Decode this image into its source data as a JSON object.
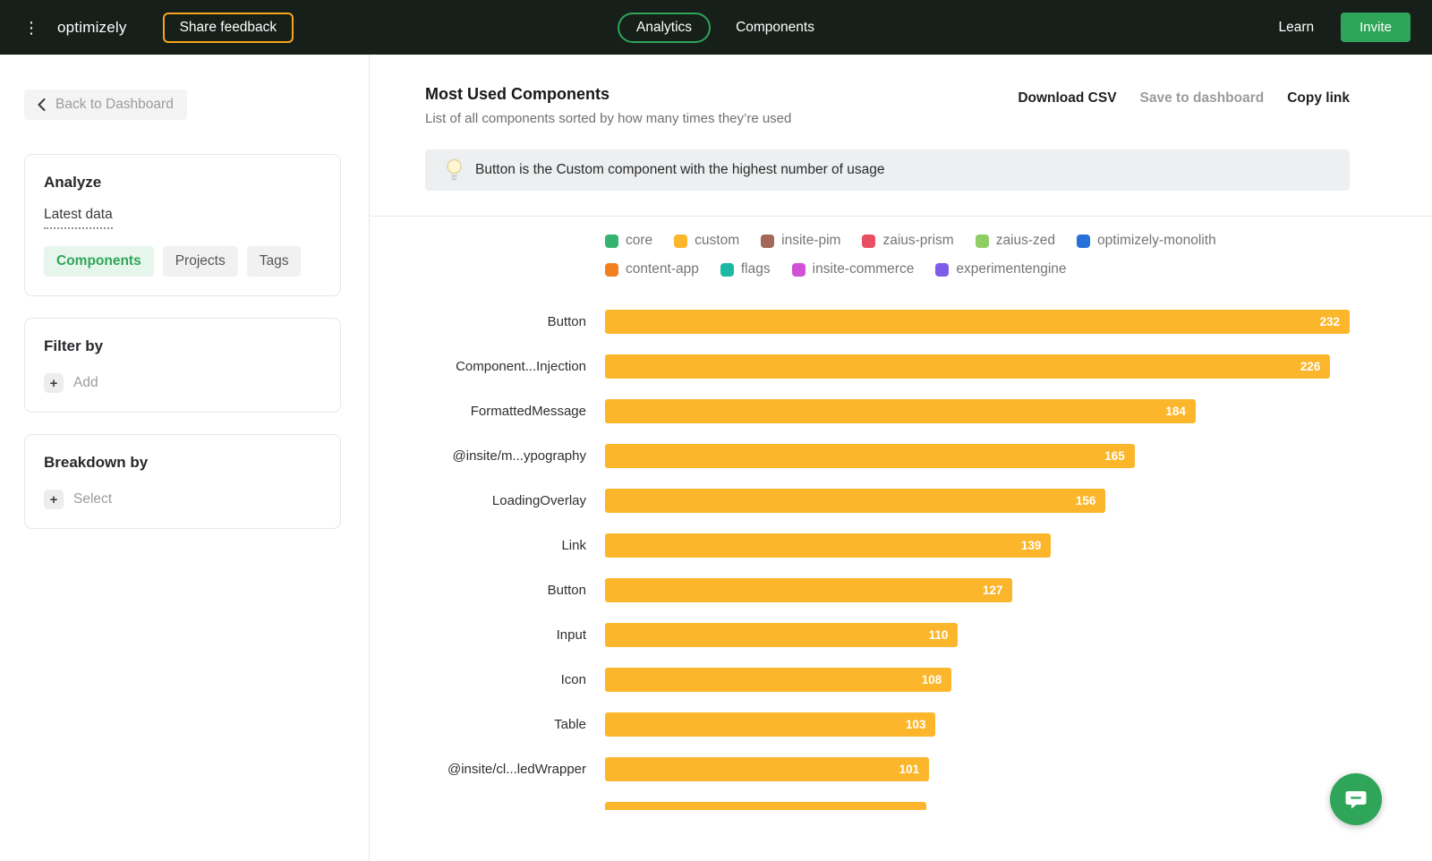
{
  "icons": {
    "kebab": "⋮",
    "plus": "+"
  },
  "navbar": {
    "logo": "optimizely",
    "share_feedback": "Share feedback",
    "tabs": [
      {
        "label": "Analytics",
        "active": true
      },
      {
        "label": "Components",
        "active": false
      }
    ],
    "learn": "Learn",
    "invite": "Invite"
  },
  "sidebar": {
    "back": "Back to Dashboard",
    "analyze": {
      "title": "Analyze",
      "latest_data": "Latest data",
      "chips": [
        {
          "label": "Components",
          "active": true
        },
        {
          "label": "Projects",
          "active": false
        },
        {
          "label": "Tags",
          "active": false
        }
      ]
    },
    "filter": {
      "title": "Filter by",
      "add": "Add"
    },
    "breakdown": {
      "title": "Breakdown by",
      "select": "Select"
    }
  },
  "main": {
    "title": "Most Used Components",
    "subtitle": "List of all components sorted by how many times they’re used",
    "actions": [
      "Download CSV",
      "Save to dashboard",
      "Copy link"
    ],
    "banner": "Button is the Custom component with the highest number of usage"
  },
  "chart_data": {
    "type": "bar",
    "orientation": "horizontal",
    "title": "Most Used Components",
    "bar_color": "#FCB62B",
    "max_value": 232,
    "legend": [
      {
        "label": "core",
        "color": "#36B370"
      },
      {
        "label": "custom",
        "color": "#FCB62B"
      },
      {
        "label": "insite-pim",
        "color": "#A3685A"
      },
      {
        "label": "zaius-prism",
        "color": "#E94F62"
      },
      {
        "label": "zaius-zed",
        "color": "#8FCE63"
      },
      {
        "label": "optimizely-monolith",
        "color": "#2671D9"
      },
      {
        "label": "content-app",
        "color": "#F28021"
      },
      {
        "label": "flags",
        "color": "#1CB8A6"
      },
      {
        "label": "insite-commerce",
        "color": "#D150D8"
      },
      {
        "label": "experimentengine",
        "color": "#7C5CE8"
      }
    ],
    "categories": [
      "Button",
      "Component...Injection",
      "FormattedMessage",
      "@insite/m...ypography",
      "LoadingOverlay",
      "Link",
      "Button",
      "Input",
      "Icon",
      "Table",
      "@insite/cl...ledWrapper"
    ],
    "values": [
      232,
      226,
      184,
      165,
      156,
      139,
      127,
      110,
      108,
      103,
      101
    ],
    "series_name": "custom",
    "partial_bar_pct": 43.1
  }
}
